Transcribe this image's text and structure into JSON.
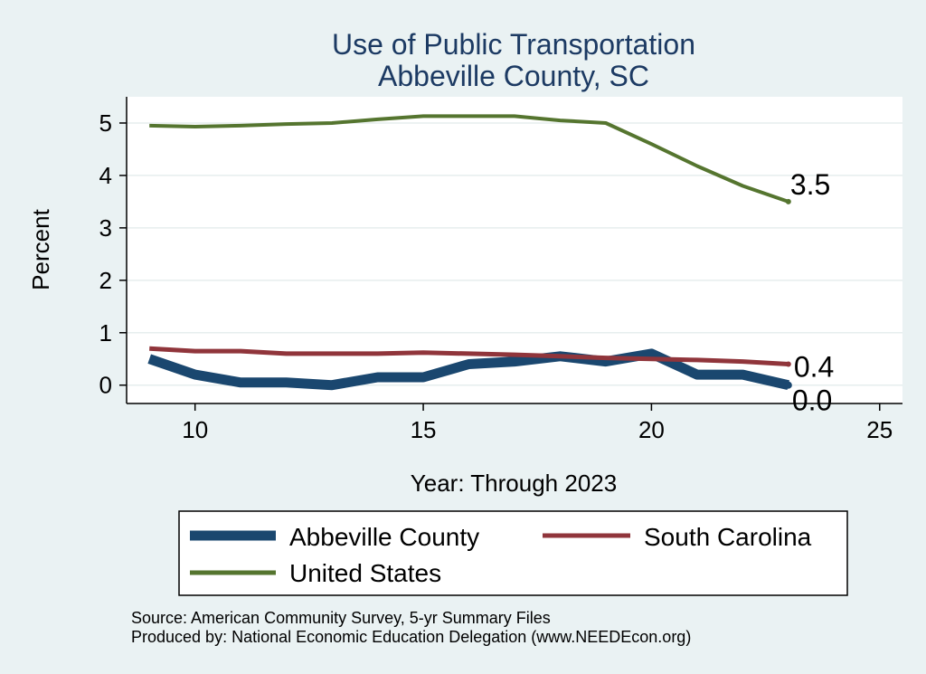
{
  "chart_data": {
    "type": "line",
    "title": [
      "Use of Public Transportation",
      "Abbeville County, SC"
    ],
    "xlabel": "Year: Through 2023",
    "ylabel": "Percent",
    "x": [
      9,
      10,
      11,
      12,
      13,
      14,
      15,
      16,
      17,
      18,
      19,
      20,
      21,
      22,
      23
    ],
    "xlim": [
      8.5,
      25.5
    ],
    "ylim": [
      -0.35,
      5.5
    ],
    "xticks": [
      10,
      15,
      20,
      25
    ],
    "yticks": [
      0,
      1,
      2,
      3,
      4,
      5
    ],
    "grid": true,
    "legend_position": "bottom",
    "series": [
      {
        "name": "Abbeville County",
        "color": "#1a476f",
        "values": [
          0.5,
          0.2,
          0.05,
          0.05,
          0.0,
          0.15,
          0.15,
          0.4,
          0.45,
          0.55,
          0.45,
          0.6,
          0.2,
          0.2,
          0.0
        ],
        "end_label": "0.0"
      },
      {
        "name": "South Carolina",
        "color": "#90353b",
        "values": [
          0.7,
          0.65,
          0.65,
          0.6,
          0.6,
          0.6,
          0.62,
          0.6,
          0.58,
          0.55,
          0.52,
          0.5,
          0.48,
          0.45,
          0.4
        ],
        "end_label": "0.4"
      },
      {
        "name": "United States",
        "color": "#55752f",
        "values": [
          4.95,
          4.93,
          4.95,
          4.98,
          5.0,
          5.07,
          5.13,
          5.13,
          5.13,
          5.05,
          5.0,
          4.6,
          4.18,
          3.8,
          3.5
        ],
        "end_label": "3.5"
      }
    ],
    "notes": [
      "Source: American Community Survey, 5-yr Summary Files",
      "Produced by: National Economic Education Delegation (www.NEEDEcon.org)"
    ]
  }
}
